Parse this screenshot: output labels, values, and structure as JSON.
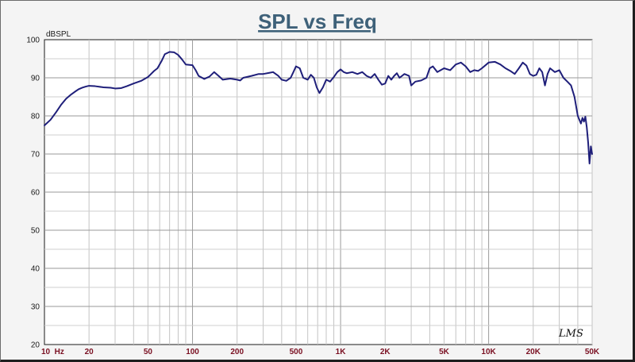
{
  "chart_data": {
    "type": "line",
    "title": "SPL vs Freq",
    "ylabel": "dBSPL",
    "xlabel": "",
    "xscale": "log",
    "xlim": [
      10,
      50000
    ],
    "ylim": [
      20,
      100
    ],
    "grid": true,
    "y_ticks": [
      20,
      30,
      40,
      50,
      60,
      70,
      80,
      90,
      100
    ],
    "x_ticks": [
      {
        "value": 10,
        "label": "10  Hz"
      },
      {
        "value": 20,
        "label": "20"
      },
      {
        "value": 50,
        "label": "50"
      },
      {
        "value": 100,
        "label": "100"
      },
      {
        "value": 200,
        "label": "200"
      },
      {
        "value": 500,
        "label": "500"
      },
      {
        "value": 1000,
        "label": "1K"
      },
      {
        "value": 2000,
        "label": "2K"
      },
      {
        "value": 5000,
        "label": "5K"
      },
      {
        "value": 10000,
        "label": "10K"
      },
      {
        "value": 20000,
        "label": "20K"
      },
      {
        "value": 50000,
        "label": "50K"
      }
    ],
    "series": [
      {
        "color": "#1f1f7a",
        "points": [
          [
            10,
            77.5
          ],
          [
            11,
            79
          ],
          [
            12,
            81
          ],
          [
            13,
            83
          ],
          [
            14,
            84.5
          ],
          [
            15,
            85.5
          ],
          [
            16,
            86.3
          ],
          [
            17,
            87
          ],
          [
            18,
            87.4
          ],
          [
            19,
            87.7
          ],
          [
            20,
            87.9
          ],
          [
            22,
            87.8
          ],
          [
            25,
            87.5
          ],
          [
            28,
            87.4
          ],
          [
            30,
            87.2
          ],
          [
            33,
            87.3
          ],
          [
            36,
            87.8
          ],
          [
            40,
            88.5
          ],
          [
            45,
            89.2
          ],
          [
            50,
            90.2
          ],
          [
            55,
            91.8
          ],
          [
            58,
            92.5
          ],
          [
            62,
            94.5
          ],
          [
            65,
            96.2
          ],
          [
            70,
            96.8
          ],
          [
            75,
            96.7
          ],
          [
            80,
            96
          ],
          [
            85,
            94.8
          ],
          [
            90,
            93.5
          ],
          [
            100,
            93.3
          ],
          [
            105,
            92
          ],
          [
            110,
            90.5
          ],
          [
            120,
            89.7
          ],
          [
            130,
            90.3
          ],
          [
            140,
            91.5
          ],
          [
            150,
            90.5
          ],
          [
            160,
            89.5
          ],
          [
            180,
            89.8
          ],
          [
            200,
            89.5
          ],
          [
            210,
            89.3
          ],
          [
            220,
            90
          ],
          [
            250,
            90.5
          ],
          [
            280,
            91
          ],
          [
            300,
            91
          ],
          [
            330,
            91.3
          ],
          [
            350,
            91.5
          ],
          [
            380,
            90.5
          ],
          [
            400,
            89.5
          ],
          [
            430,
            89.2
          ],
          [
            460,
            90
          ],
          [
            480,
            91.5
          ],
          [
            500,
            93
          ],
          [
            530,
            92.5
          ],
          [
            560,
            90
          ],
          [
            600,
            89.5
          ],
          [
            630,
            90.8
          ],
          [
            660,
            90
          ],
          [
            690,
            87.5
          ],
          [
            720,
            86
          ],
          [
            760,
            87.5
          ],
          [
            800,
            89.5
          ],
          [
            850,
            89
          ],
          [
            900,
            90.2
          ],
          [
            950,
            91.5
          ],
          [
            1000,
            92.2
          ],
          [
            1050,
            91.5
          ],
          [
            1100,
            91.2
          ],
          [
            1200,
            91.5
          ],
          [
            1300,
            91
          ],
          [
            1400,
            91.5
          ],
          [
            1500,
            90.5
          ],
          [
            1600,
            90
          ],
          [
            1700,
            91
          ],
          [
            1800,
            89.5
          ],
          [
            1900,
            88.2
          ],
          [
            2000,
            88.5
          ],
          [
            2100,
            90.5
          ],
          [
            2200,
            89.5
          ],
          [
            2300,
            90.5
          ],
          [
            2400,
            91.2
          ],
          [
            2500,
            90
          ],
          [
            2700,
            91
          ],
          [
            2900,
            90.5
          ],
          [
            3000,
            88
          ],
          [
            3200,
            89
          ],
          [
            3500,
            89.3
          ],
          [
            3800,
            90
          ],
          [
            4000,
            92.5
          ],
          [
            4200,
            93
          ],
          [
            4500,
            91.5
          ],
          [
            5000,
            92.5
          ],
          [
            5500,
            92
          ],
          [
            6000,
            93.5
          ],
          [
            6500,
            94
          ],
          [
            7000,
            93
          ],
          [
            7500,
            91.5
          ],
          [
            8000,
            92
          ],
          [
            8500,
            91.8
          ],
          [
            9000,
            92.5
          ],
          [
            10000,
            94
          ],
          [
            11000,
            94.2
          ],
          [
            12000,
            93.5
          ],
          [
            13000,
            92.5
          ],
          [
            14000,
            91.8
          ],
          [
            15000,
            91
          ],
          [
            16000,
            92.5
          ],
          [
            17000,
            94
          ],
          [
            18000,
            93.2
          ],
          [
            19000,
            91
          ],
          [
            20000,
            90.5
          ],
          [
            21000,
            90.8
          ],
          [
            22000,
            92.5
          ],
          [
            23000,
            91.5
          ],
          [
            24000,
            88
          ],
          [
            25000,
            91
          ],
          [
            26000,
            92.5
          ],
          [
            28000,
            91.5
          ],
          [
            30000,
            92
          ],
          [
            32000,
            90
          ],
          [
            34000,
            89
          ],
          [
            36000,
            88
          ],
          [
            38000,
            85
          ],
          [
            40000,
            80
          ],
          [
            42000,
            78
          ],
          [
            43000,
            79.5
          ],
          [
            44000,
            78.5
          ],
          [
            45000,
            79.8
          ],
          [
            46000,
            77
          ],
          [
            47000,
            73
          ],
          [
            48000,
            67.5
          ],
          [
            49000,
            72
          ],
          [
            50000,
            70
          ]
        ]
      }
    ]
  },
  "watermark": "LMS"
}
